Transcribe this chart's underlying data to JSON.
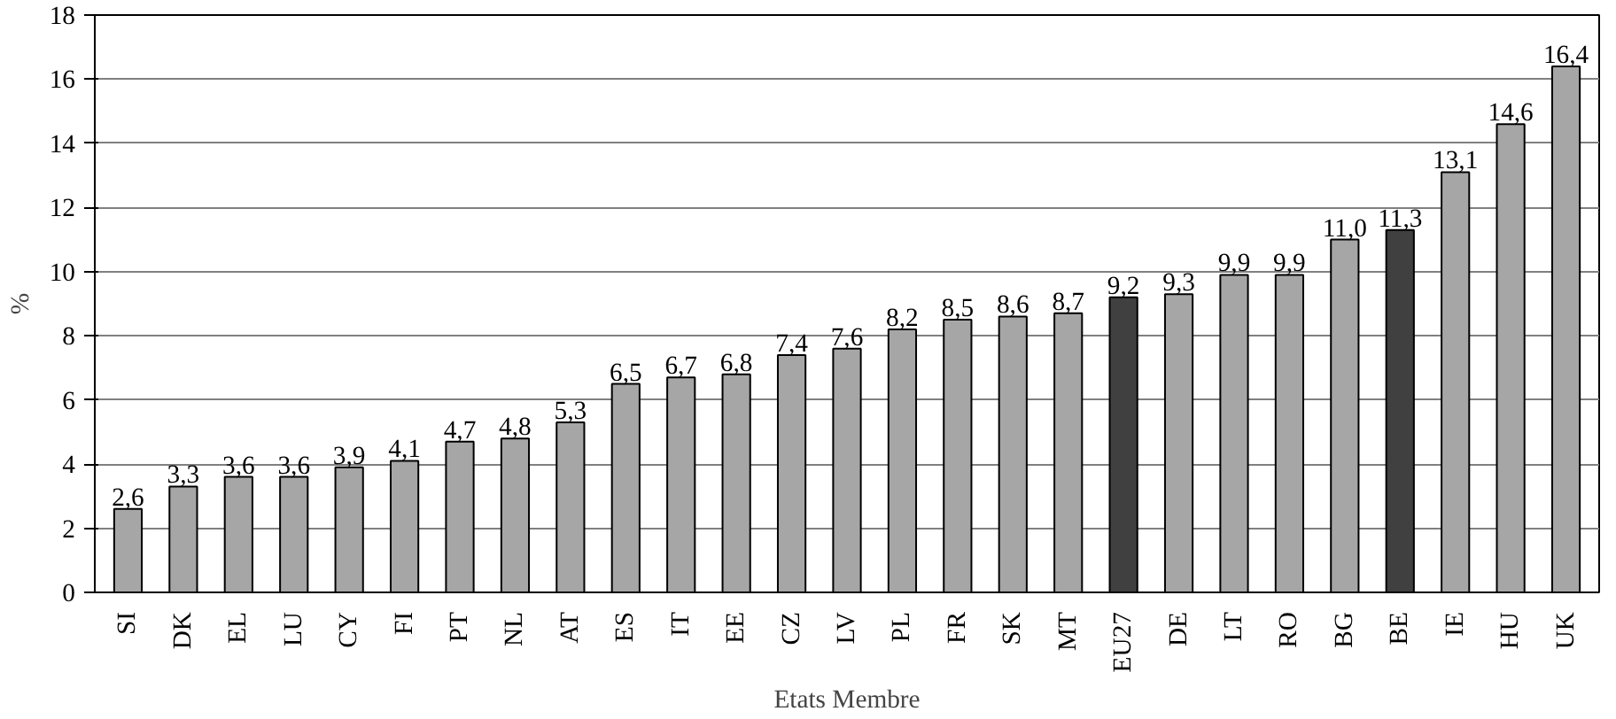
{
  "chart_data": {
    "type": "bar",
    "xlabel": "Etats Membre",
    "ylabel": "%",
    "categories": [
      "SI",
      "DK",
      "EL",
      "LU",
      "CY",
      "FI",
      "PT",
      "NL",
      "AT",
      "ES",
      "IT",
      "EE",
      "CZ",
      "LV",
      "PL",
      "FR",
      "SK",
      "MT",
      "EU27",
      "DE",
      "LT",
      "RO",
      "BG",
      "BE",
      "IE",
      "HU",
      "UK"
    ],
    "values": [
      2.6,
      3.3,
      3.6,
      3.6,
      3.9,
      4.1,
      4.7,
      4.8,
      5.3,
      6.5,
      6.7,
      6.8,
      7.4,
      7.6,
      8.2,
      8.5,
      8.6,
      8.7,
      9.2,
      9.3,
      9.9,
      9.9,
      11.0,
      11.3,
      13.1,
      14.6,
      16.4
    ],
    "value_labels": [
      "2,6",
      "3,3",
      "3,6",
      "3,6",
      "3,9",
      "4,1",
      "4,7",
      "4,8",
      "5,3",
      "6,5",
      "6,7",
      "6,8",
      "7,4",
      "7,6",
      "8,2",
      "8,5",
      "8,6",
      "8,7",
      "9,2",
      "9,3",
      "9,9",
      "9,9",
      "11,0",
      "11,3",
      "13,1",
      "14,6",
      "16,4"
    ],
    "colors": [
      "#a6a6a6",
      "#a6a6a6",
      "#a6a6a6",
      "#a6a6a6",
      "#a6a6a6",
      "#a6a6a6",
      "#a6a6a6",
      "#a6a6a6",
      "#a6a6a6",
      "#a6a6a6",
      "#a6a6a6",
      "#a6a6a6",
      "#a6a6a6",
      "#a6a6a6",
      "#a6a6a6",
      "#a6a6a6",
      "#a6a6a6",
      "#a6a6a6",
      "#404040",
      "#a6a6a6",
      "#a6a6a6",
      "#a6a6a6",
      "#a6a6a6",
      "#404040",
      "#a6a6a6",
      "#a6a6a6",
      "#a6a6a6"
    ],
    "ylim": [
      0,
      18
    ],
    "yticks": [
      0,
      2,
      4,
      6,
      8,
      10,
      12,
      14,
      16,
      18
    ],
    "grid": "y"
  }
}
